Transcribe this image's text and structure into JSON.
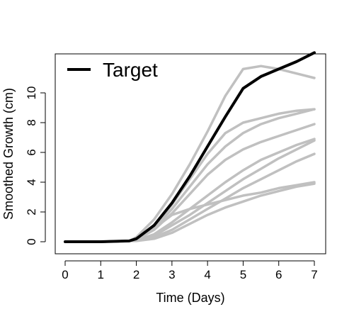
{
  "chart_data": {
    "type": "line",
    "title": "",
    "xlabel": "Time (Days)",
    "ylabel": "Smoothed Growth (cm)",
    "xlim": [
      0,
      7
    ],
    "ylim": [
      0,
      12
    ],
    "xticks": [
      0,
      1,
      2,
      3,
      4,
      5,
      6,
      7
    ],
    "yticks": [
      0,
      2,
      4,
      6,
      8,
      10
    ],
    "grid": false,
    "legend": {
      "position": "top-left",
      "entries": [
        "Target"
      ]
    },
    "colors": {
      "target": "#000000",
      "other": "#c0c0c0"
    },
    "series": [
      {
        "name": "Target",
        "highlight": true,
        "x": [
          0,
          1,
          1.8,
          2,
          2.5,
          3,
          3.5,
          4,
          4.5,
          5,
          5.5,
          6,
          6.5,
          7
        ],
        "y": [
          0,
          0,
          0.05,
          0.2,
          1.1,
          2.6,
          4.4,
          6.4,
          8.4,
          10.3,
          11.1,
          11.6,
          12.1,
          12.7
        ]
      },
      {
        "x": [
          0,
          1,
          1.8,
          2,
          2.5,
          3,
          3.5,
          4,
          4.5,
          5,
          5.5,
          6,
          6.5,
          7
        ],
        "y": [
          0,
          0,
          0.05,
          0.3,
          1.5,
          3.2,
          5.2,
          7.4,
          9.8,
          11.6,
          11.8,
          11.6,
          11.3,
          11.0
        ]
      },
      {
        "x": [
          0,
          1,
          1.8,
          2,
          2.5,
          3,
          3.5,
          4,
          4.5,
          5,
          5.5,
          6,
          6.5,
          7
        ],
        "y": [
          0,
          0,
          0.05,
          0.2,
          1.0,
          2.5,
          4.2,
          5.9,
          7.3,
          8.0,
          8.3,
          8.6,
          8.8,
          8.9
        ]
      },
      {
        "x": [
          0,
          1,
          1.8,
          2,
          2.5,
          3,
          3.5,
          4,
          4.5,
          5,
          5.5,
          6,
          6.5,
          7
        ],
        "y": [
          0,
          0,
          0.05,
          0.2,
          0.9,
          2.2,
          3.7,
          5.2,
          6.4,
          7.3,
          7.9,
          8.3,
          8.6,
          8.9
        ]
      },
      {
        "x": [
          0,
          1,
          1.8,
          2,
          2.5,
          3,
          3.5,
          4,
          4.5,
          5,
          5.5,
          6,
          6.5,
          7
        ],
        "y": [
          0,
          0,
          0.05,
          0.15,
          0.8,
          1.9,
          3.2,
          4.5,
          5.5,
          6.2,
          6.7,
          7.1,
          7.5,
          7.9
        ]
      },
      {
        "x": [
          0,
          1,
          1.8,
          2,
          2.5,
          3,
          3.5,
          4,
          4.5,
          5,
          5.5,
          6,
          6.5,
          7
        ],
        "y": [
          0,
          0,
          0.05,
          0.1,
          0.5,
          1.3,
          2.2,
          3.1,
          4.0,
          4.8,
          5.5,
          6.0,
          6.5,
          6.9
        ]
      },
      {
        "x": [
          0,
          1,
          1.8,
          2,
          2.5,
          3,
          3.5,
          4,
          4.5,
          5,
          5.5,
          6,
          6.5,
          7
        ],
        "y": [
          0,
          0,
          0.05,
          0.1,
          0.4,
          1.1,
          1.8,
          2.6,
          3.4,
          4.2,
          4.9,
          5.6,
          6.2,
          6.8
        ]
      },
      {
        "x": [
          0,
          1,
          1.8,
          2,
          2.5,
          3,
          3.5,
          4,
          4.5,
          5,
          5.5,
          6,
          6.5,
          7
        ],
        "y": [
          0,
          0,
          0.05,
          0.1,
          0.3,
          0.8,
          1.5,
          2.2,
          2.9,
          3.6,
          4.2,
          4.8,
          5.4,
          5.9
        ]
      },
      {
        "x": [
          0,
          1,
          1.8,
          2,
          2.5,
          3,
          3.5,
          4,
          4.5,
          5,
          5.5,
          6,
          6.5,
          7
        ],
        "y": [
          0,
          0,
          0.05,
          0.15,
          0.9,
          1.8,
          2.2,
          2.5,
          2.8,
          3.1,
          3.3,
          3.6,
          3.8,
          4.0
        ]
      },
      {
        "x": [
          0,
          1,
          1.8,
          2,
          2.5,
          3,
          3.5,
          4,
          4.5,
          5,
          5.5,
          6,
          6.5,
          7
        ],
        "y": [
          0,
          0,
          0.05,
          0.05,
          0.2,
          0.6,
          1.2,
          1.8,
          2.3,
          2.7,
          3.1,
          3.4,
          3.7,
          3.9
        ]
      }
    ]
  }
}
